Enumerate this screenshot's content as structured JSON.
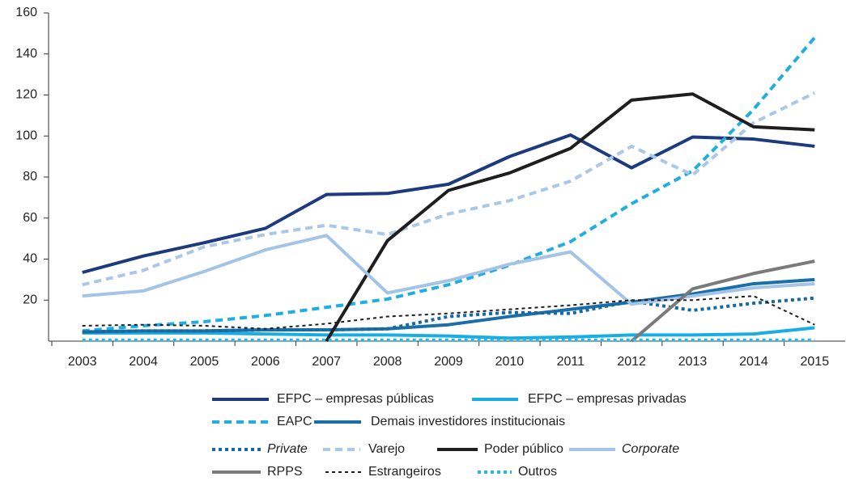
{
  "chart_data": {
    "type": "line",
    "categories": [
      "2003",
      "2004",
      "2005",
      "2006",
      "2007",
      "2008",
      "2009",
      "2010",
      "2011",
      "2012",
      "2013",
      "2014",
      "2015"
    ],
    "ylim": [
      0,
      160
    ],
    "yticks": [
      20,
      40,
      60,
      80,
      100,
      120,
      140,
      160
    ],
    "series": [
      {
        "name": "EFPC – empresas públicas",
        "color": "#1c3a7c",
        "style": "solid",
        "values": [
          33.5,
          41.5,
          48,
          55,
          71.5,
          72,
          76.5,
          90,
          100.5,
          84.5,
          99.5,
          98.5,
          95
        ]
      },
      {
        "name": "EFPC – empresas privadas",
        "color": "#19aee3",
        "style": "solid",
        "values": [
          4,
          4,
          4,
          3.5,
          3,
          3,
          2.5,
          1.5,
          2,
          3,
          3,
          3.5,
          6.5
        ]
      },
      {
        "name": "EAPC",
        "color": "#1faee0",
        "style": "dashed",
        "values": [
          5,
          7.5,
          9.5,
          12.5,
          16.5,
          20.5,
          27.5,
          37,
          48.5,
          67,
          83,
          113,
          148
        ]
      },
      {
        "name": "Demais investidores institucionais",
        "color": "#1b6ea8",
        "style": "solid",
        "values": [
          4.5,
          5,
          5,
          5.5,
          5.5,
          6,
          8,
          12,
          15.5,
          19,
          23,
          28,
          30
        ]
      },
      {
        "name": "Private",
        "color": "#1669a3",
        "style": "dotted",
        "values": [
          4.5,
          5,
          5,
          5.5,
          5.5,
          6,
          12,
          14,
          13.5,
          19.5,
          15,
          18.5,
          21
        ]
      },
      {
        "name": "Varejo",
        "color": "#a9c8e8",
        "style": "dashed",
        "values": [
          27.5,
          34.5,
          46,
          52,
          56.5,
          52,
          62,
          68.5,
          78,
          95,
          81,
          106.5,
          121
        ]
      },
      {
        "name": "Poder público",
        "color": "#1e1e1e",
        "style": "solid",
        "values": [
          null,
          null,
          null,
          null,
          0,
          49,
          73.5,
          82,
          94,
          117.5,
          120.5,
          104.5,
          103
        ]
      },
      {
        "name": "Corporate",
        "color": "#a3c4e6",
        "style": "solid",
        "values": [
          22,
          24.5,
          34,
          44.5,
          51.5,
          23.5,
          29.5,
          37.5,
          43.5,
          18,
          22,
          26,
          28
        ]
      },
      {
        "name": "RPPS",
        "color": "#7a7a7a",
        "style": "solid",
        "values": [
          null,
          null,
          null,
          null,
          null,
          null,
          null,
          null,
          null,
          0,
          25.5,
          33,
          39
        ]
      },
      {
        "name": "Estrangeiros",
        "color": "#1e1e1e",
        "style": "thin-dotted",
        "values": [
          7.5,
          8,
          7.5,
          6,
          8.5,
          12,
          13.5,
          15.5,
          17.5,
          20,
          20,
          22,
          8
        ]
      },
      {
        "name": "Outros",
        "color": "#2bb4e6",
        "style": "dotted",
        "values": [
          0.5,
          0.5,
          0.5,
          0.5,
          0.5,
          0.5,
          0.5,
          0.5,
          0.5,
          0.5,
          0.5,
          0.5,
          0.5
        ]
      }
    ]
  }
}
